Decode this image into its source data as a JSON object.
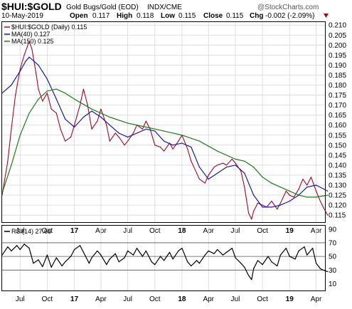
{
  "header": {
    "symbol": "$HUI:$GOLD",
    "description": "Gold Bugs/Gold (EOD)",
    "exchange": "INDX/CME",
    "date": "10-May-2019",
    "open_label": "Open",
    "open_value": "0.117",
    "high_label": "High",
    "high_value": "0.118",
    "low_label": "Low",
    "low_value": "0.115",
    "close_label": "Close",
    "close_value": "0.115",
    "chg_label": "Chg",
    "chg_value": "-0.002 (-2.09%)",
    "chg_arrow": "down-triangle-icon",
    "watermark": "@StockCharts.com"
  },
  "colors": {
    "price": "#9b0a28",
    "ma40": "#1a1aa6",
    "ma150": "#1e7a1e",
    "rsi": "#000000",
    "grid": "#d8d8d8",
    "watermark": "#555555",
    "chg_arrow": "#b30000"
  },
  "chart_data": [
    {
      "type": "line",
      "title": "$HUI:$GOLD (Daily) 0.115",
      "x_ticks": [
        "Jul",
        "Oct",
        "17",
        "Apr",
        "Jul",
        "Oct",
        "18",
        "Apr",
        "Jul",
        "Oct",
        "19",
        "Apr"
      ],
      "x_tick_positions": [
        "2016-07",
        "2016-10",
        "2017-01",
        "2017-04",
        "2017-07",
        "2017-10",
        "2018-01",
        "2018-04",
        "2018-07",
        "2018-10",
        "2019-01",
        "2019-04"
      ],
      "x_range": [
        "2016-05",
        "2019-05"
      ],
      "y_ticks": [
        "0.210",
        "0.205",
        "0.200",
        "0.195",
        "0.190",
        "0.185",
        "0.180",
        "0.175",
        "0.170",
        "0.165",
        "0.160",
        "0.155",
        "0.150",
        "0.145",
        "0.140",
        "0.135",
        "0.130",
        "0.125",
        "0.120",
        "0.115"
      ],
      "ylim": [
        0.1115,
        0.2115
      ],
      "grid": true,
      "legend_position": "top-left",
      "series": [
        {
          "name": "$HUI:$GOLD (Daily) 0.115",
          "color_key": "price",
          "points": [
            [
              "2016-05",
              0.125
            ],
            [
              "2016-05-20",
              0.142
            ],
            [
              "2016-06",
              0.158
            ],
            [
              "2016-06-15",
              0.175
            ],
            [
              "2016-07",
              0.188
            ],
            [
              "2016-07-15",
              0.195
            ],
            [
              "2016-08",
              0.202
            ],
            [
              "2016-08-10",
              0.198
            ],
            [
              "2016-08-25",
              0.185
            ],
            [
              "2016-09",
              0.178
            ],
            [
              "2016-09-15",
              0.172
            ],
            [
              "2016-10",
              0.176
            ],
            [
              "2016-10-15",
              0.168
            ],
            [
              "2016-11",
              0.166
            ],
            [
              "2016-11-15",
              0.158
            ],
            [
              "2016-12",
              0.152
            ],
            [
              "2016-12-20",
              0.154
            ],
            [
              "2017-01",
              0.16
            ],
            [
              "2017-01-20",
              0.17
            ],
            [
              "2017-02",
              0.178
            ],
            [
              "2017-02-15",
              0.17
            ],
            [
              "2017-03",
              0.158
            ],
            [
              "2017-03-20",
              0.162
            ],
            [
              "2017-04",
              0.168
            ],
            [
              "2017-04-20",
              0.16
            ],
            [
              "2017-05",
              0.152
            ],
            [
              "2017-05-20",
              0.156
            ],
            [
              "2017-06",
              0.154
            ],
            [
              "2017-06-20",
              0.15
            ],
            [
              "2017-07",
              0.152
            ],
            [
              "2017-07-20",
              0.156
            ],
            [
              "2017-08",
              0.16
            ],
            [
              "2017-08-20",
              0.158
            ],
            [
              "2017-09",
              0.162
            ],
            [
              "2017-09-15",
              0.158
            ],
            [
              "2017-10",
              0.15
            ],
            [
              "2017-10-20",
              0.149
            ],
            [
              "2017-11",
              0.147
            ],
            [
              "2017-11-20",
              0.151
            ],
            [
              "2017-12",
              0.148
            ],
            [
              "2017-12-20",
              0.152
            ],
            [
              "2018-01",
              0.155
            ],
            [
              "2018-01-20",
              0.148
            ],
            [
              "2018-02",
              0.142
            ],
            [
              "2018-02-20",
              0.136
            ],
            [
              "2018-03",
              0.133
            ],
            [
              "2018-03-20",
              0.131
            ],
            [
              "2018-04",
              0.135
            ],
            [
              "2018-04-20",
              0.139
            ],
            [
              "2018-05",
              0.14
            ],
            [
              "2018-05-20",
              0.141
            ],
            [
              "2018-06",
              0.14
            ],
            [
              "2018-06-20",
              0.143
            ],
            [
              "2018-07",
              0.141
            ],
            [
              "2018-07-20",
              0.137
            ],
            [
              "2018-08",
              0.129
            ],
            [
              "2018-08-15",
              0.116
            ],
            [
              "2018-08-25",
              0.113
            ],
            [
              "2018-09",
              0.117
            ],
            [
              "2018-09-15",
              0.121
            ],
            [
              "2018-10",
              0.12
            ],
            [
              "2018-10-15",
              0.119
            ],
            [
              "2018-11",
              0.122
            ],
            [
              "2018-11-20",
              0.118
            ],
            [
              "2018-12",
              0.121
            ],
            [
              "2018-12-20",
              0.127
            ],
            [
              "2019-01",
              0.125
            ],
            [
              "2019-01-15",
              0.124
            ],
            [
              "2019-02",
              0.128
            ],
            [
              "2019-02-15",
              0.133
            ],
            [
              "2019-03",
              0.13
            ],
            [
              "2019-03-15",
              0.134
            ],
            [
              "2019-04",
              0.127
            ],
            [
              "2019-04-15",
              0.122
            ],
            [
              "2019-04-25",
              0.119
            ],
            [
              "2019-05-10",
              0.115
            ]
          ]
        },
        {
          "name": "MA(40) 0.127",
          "color_key": "ma40",
          "points": [
            [
              "2016-05",
              0.176
            ],
            [
              "2016-06",
              0.18
            ],
            [
              "2016-07",
              0.187
            ],
            [
              "2016-07-20",
              0.192
            ],
            [
              "2016-08",
              0.194
            ],
            [
              "2016-09",
              0.19
            ],
            [
              "2016-10",
              0.183
            ],
            [
              "2016-11",
              0.173
            ],
            [
              "2016-12",
              0.163
            ],
            [
              "2017-01",
              0.159
            ],
            [
              "2017-02",
              0.164
            ],
            [
              "2017-03",
              0.167
            ],
            [
              "2017-04",
              0.164
            ],
            [
              "2017-05",
              0.16
            ],
            [
              "2017-06",
              0.156
            ],
            [
              "2017-07",
              0.154
            ],
            [
              "2017-08",
              0.156
            ],
            [
              "2017-09",
              0.158
            ],
            [
              "2017-10",
              0.157
            ],
            [
              "2017-11",
              0.152
            ],
            [
              "2017-12",
              0.15
            ],
            [
              "2018-01",
              0.151
            ],
            [
              "2018-02",
              0.149
            ],
            [
              "2018-03",
              0.139
            ],
            [
              "2018-04",
              0.133
            ],
            [
              "2018-05",
              0.136
            ],
            [
              "2018-06",
              0.139
            ],
            [
              "2018-07",
              0.14
            ],
            [
              "2018-08",
              0.136
            ],
            [
              "2018-09",
              0.125
            ],
            [
              "2018-10",
              0.119
            ],
            [
              "2018-11",
              0.119
            ],
            [
              "2018-12",
              0.12
            ],
            [
              "2019-01",
              0.122
            ],
            [
              "2019-02",
              0.125
            ],
            [
              "2019-03",
              0.129
            ],
            [
              "2019-04",
              0.13
            ],
            [
              "2019-05-10",
              0.127
            ]
          ]
        },
        {
          "name": "MA(150) 0.125",
          "color_key": "ma150",
          "points": [
            [
              "2016-05",
              0.126
            ],
            [
              "2016-06",
              0.14
            ],
            [
              "2016-07",
              0.155
            ],
            [
              "2016-08",
              0.166
            ],
            [
              "2016-09",
              0.173
            ],
            [
              "2016-10",
              0.177
            ],
            [
              "2016-11",
              0.178
            ],
            [
              "2016-12",
              0.176
            ],
            [
              "2017-01",
              0.173
            ],
            [
              "2017-03",
              0.168
            ],
            [
              "2017-05",
              0.164
            ],
            [
              "2017-07",
              0.161
            ],
            [
              "2017-09",
              0.159
            ],
            [
              "2017-11",
              0.157
            ],
            [
              "2018-01",
              0.155
            ],
            [
              "2018-03",
              0.152
            ],
            [
              "2018-05",
              0.147
            ],
            [
              "2018-07",
              0.143
            ],
            [
              "2018-08",
              0.142
            ],
            [
              "2018-09",
              0.139
            ],
            [
              "2018-10",
              0.134
            ],
            [
              "2018-11",
              0.131
            ],
            [
              "2018-12",
              0.129
            ],
            [
              "2019-01",
              0.127
            ],
            [
              "2019-02",
              0.125
            ],
            [
              "2019-03",
              0.124
            ],
            [
              "2019-04",
              0.124
            ],
            [
              "2019-05-10",
              0.125
            ]
          ]
        }
      ]
    },
    {
      "type": "line",
      "title": "RSI(14) 27.68",
      "x_ticks": [
        "Jul",
        "Oct",
        "17",
        "Apr",
        "Jul",
        "Oct",
        "18",
        "Apr",
        "Jul",
        "Oct",
        "19",
        "Apr"
      ],
      "x_tick_positions": [
        "2016-07",
        "2016-10",
        "2017-01",
        "2017-04",
        "2017-07",
        "2017-10",
        "2018-01",
        "2018-04",
        "2018-07",
        "2018-10",
        "2019-01",
        "2019-04"
      ],
      "x_range": [
        "2016-05",
        "2019-05"
      ],
      "y_ticks": [
        "90",
        "70",
        "50",
        "30",
        "10"
      ],
      "ylim": [
        0,
        95
      ],
      "reference_lines": [
        70,
        50,
        30
      ],
      "grid": true,
      "series": [
        {
          "name": "RSI(14) 27.68",
          "color_key": "rsi",
          "points": [
            [
              "2016-05",
              52
            ],
            [
              "2016-05-20",
              64
            ],
            [
              "2016-06",
              58
            ],
            [
              "2016-06-20",
              66
            ],
            [
              "2016-07",
              60
            ],
            [
              "2016-07-15",
              68
            ],
            [
              "2016-08",
              62
            ],
            [
              "2016-08-15",
              40
            ],
            [
              "2016-09",
              45
            ],
            [
              "2016-09-15",
              35
            ],
            [
              "2016-10",
              52
            ],
            [
              "2016-10-15",
              34
            ],
            [
              "2016-11",
              48
            ],
            [
              "2016-11-20",
              36
            ],
            [
              "2016-12",
              42
            ],
            [
              "2016-12-20",
              50
            ],
            [
              "2017-01",
              60
            ],
            [
              "2017-01-20",
              66
            ],
            [
              "2017-02",
              56
            ],
            [
              "2017-02-20",
              40
            ],
            [
              "2017-03",
              48
            ],
            [
              "2017-03-20",
              58
            ],
            [
              "2017-04",
              52
            ],
            [
              "2017-04-20",
              38
            ],
            [
              "2017-05",
              46
            ],
            [
              "2017-05-20",
              54
            ],
            [
              "2017-06",
              42
            ],
            [
              "2017-06-20",
              48
            ],
            [
              "2017-07",
              58
            ],
            [
              "2017-07-20",
              52
            ],
            [
              "2017-08",
              62
            ],
            [
              "2017-08-20",
              50
            ],
            [
              "2017-09",
              58
            ],
            [
              "2017-09-20",
              42
            ],
            [
              "2017-10",
              38
            ],
            [
              "2017-10-20",
              50
            ],
            [
              "2017-11",
              44
            ],
            [
              "2017-11-20",
              56
            ],
            [
              "2017-12",
              46
            ],
            [
              "2017-12-20",
              58
            ],
            [
              "2018-01",
              62
            ],
            [
              "2018-01-20",
              42
            ],
            [
              "2018-02",
              36
            ],
            [
              "2018-02-20",
              44
            ],
            [
              "2018-03",
              40
            ],
            [
              "2018-03-20",
              52
            ],
            [
              "2018-04",
              58
            ],
            [
              "2018-04-20",
              54
            ],
            [
              "2018-05",
              60
            ],
            [
              "2018-05-20",
              52
            ],
            [
              "2018-06",
              56
            ],
            [
              "2018-06-20",
              62
            ],
            [
              "2018-07",
              48
            ],
            [
              "2018-07-20",
              40
            ],
            [
              "2018-08",
              34
            ],
            [
              "2018-08-15",
              22
            ],
            [
              "2018-08-25",
              16
            ],
            [
              "2018-09",
              32
            ],
            [
              "2018-09-15",
              44
            ],
            [
              "2018-10",
              38
            ],
            [
              "2018-10-20",
              50
            ],
            [
              "2018-11",
              42
            ],
            [
              "2018-11-20",
              36
            ],
            [
              "2018-12",
              52
            ],
            [
              "2018-12-20",
              62
            ],
            [
              "2019-01",
              50
            ],
            [
              "2019-01-20",
              46
            ],
            [
              "2019-02",
              58
            ],
            [
              "2019-02-20",
              64
            ],
            [
              "2019-03",
              52
            ],
            [
              "2019-03-20",
              62
            ],
            [
              "2019-04",
              40
            ],
            [
              "2019-04-15",
              32
            ],
            [
              "2019-04-25",
              30
            ],
            [
              "2019-05-10",
              27.68
            ]
          ]
        }
      ]
    }
  ]
}
